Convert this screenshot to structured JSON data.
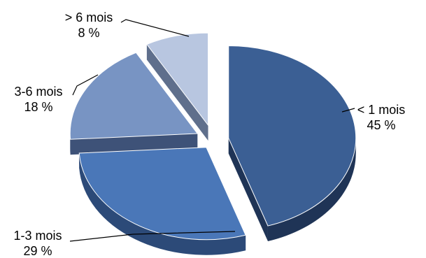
{
  "chart_data": {
    "type": "pie",
    "style": "3d-exploded",
    "categories": [
      "< 1 mois",
      "1-3 mois",
      "3-6 mois",
      "> 6 mois"
    ],
    "values": [
      45,
      29,
      18,
      8
    ],
    "value_labels": [
      "45 %",
      "29 %",
      "18 %",
      "8 %"
    ],
    "unit": "%",
    "colors": {
      "top": [
        "#3b5f94",
        "#4a77b8",
        "#7894c3",
        "#b8c6e0"
      ],
      "side": [
        "#1f3456",
        "#2c4a78",
        "#3e5278",
        "#5f6f8c"
      ],
      "stroke": "#ffffff",
      "leader": "#000000"
    }
  }
}
